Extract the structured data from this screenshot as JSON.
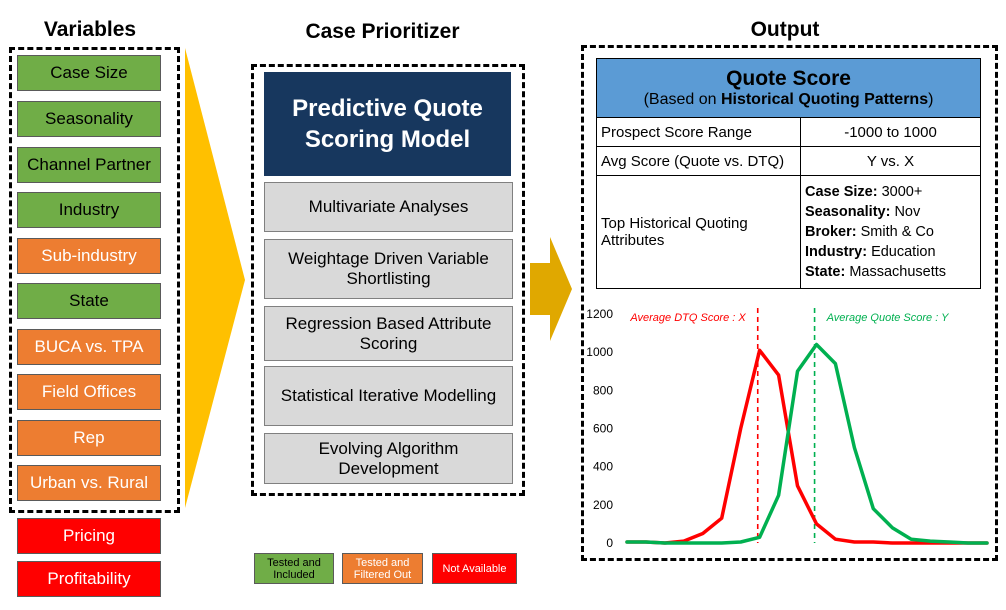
{
  "headings": {
    "variables": "Variables",
    "prioritizer": "Case Prioritizer",
    "output": "Output"
  },
  "variables": [
    {
      "label": "Case Size",
      "status": "green"
    },
    {
      "label": "Seasonality",
      "status": "green"
    },
    {
      "label": "Channel Partner",
      "status": "green"
    },
    {
      "label": "Industry",
      "status": "green"
    },
    {
      "label": "Sub-industry",
      "status": "orange"
    },
    {
      "label": "State",
      "status": "green"
    },
    {
      "label": "BUCA vs. TPA",
      "status": "orange"
    },
    {
      "label": "Field Offices",
      "status": "orange"
    },
    {
      "label": "Rep",
      "status": "orange"
    },
    {
      "label": "Urban vs. Rural",
      "status": "orange"
    }
  ],
  "unavailable": [
    "Pricing",
    "Profitability"
  ],
  "model": {
    "title": "Predictive Quote Scoring Model"
  },
  "steps": [
    "Multivariate Analyses",
    "Weightage Driven Variable Shortlisting",
    "Regression Based Attribute Scoring",
    "Statistical Iterative Modelling",
    "Evolving Algorithm Development"
  ],
  "legend": {
    "tested_included": "Tested and Included",
    "tested_filtered": "Tested and Filtered Out",
    "not_available": "Not Available"
  },
  "colors": {
    "green": "#70ad47",
    "orange": "#ed7d31",
    "red": "#ff0000",
    "navy": "#17375e",
    "blue": "#5b9bd5",
    "arrow": "#ffc000",
    "arrow2": "#e0a800",
    "dtq": "#ff0000",
    "quote": "#00b050"
  },
  "quote_score": {
    "title": "Quote Score",
    "subtitle_prefix": "(Based on ",
    "subtitle_bold": "Historical Quoting Patterns",
    "subtitle_suffix": ")",
    "rows": [
      {
        "label": "Prospect Score Range",
        "value": "-1000 to 1000"
      },
      {
        "label": "Avg Score (Quote vs. DTQ)",
        "value": "Y vs. X"
      }
    ],
    "attr_label": "Top Historical Quoting Attributes",
    "attributes": [
      {
        "key": "Case Size:",
        "value": "3000+"
      },
      {
        "key": "Seasonality:",
        "value": "Nov"
      },
      {
        "key": "Broker:",
        "value": "Smith & Co"
      },
      {
        "key": "Industry:",
        "value": "Education"
      },
      {
        "key": "State:",
        "value": "Massachusetts"
      }
    ]
  },
  "chart_data": {
    "type": "line",
    "x": [
      0,
      1,
      2,
      3,
      4,
      5,
      6,
      7,
      8,
      9,
      10,
      11,
      12,
      13,
      14,
      15,
      16,
      17,
      18,
      19
    ],
    "series": [
      {
        "name": "Average DTQ Score : X",
        "color": "#ff0000",
        "values": [
          5,
          5,
          0,
          10,
          50,
          130,
          600,
          1010,
          880,
          300,
          100,
          20,
          5,
          5,
          0,
          0,
          0,
          0,
          0,
          0
        ]
      },
      {
        "name": "Average Quote Score : Y",
        "color": "#00b050",
        "values": [
          5,
          5,
          0,
          0,
          0,
          0,
          5,
          30,
          250,
          900,
          1040,
          940,
          500,
          180,
          80,
          20,
          10,
          5,
          0,
          0
        ]
      }
    ],
    "ylim": [
      0,
      1200
    ],
    "yticks": [
      0,
      200,
      400,
      600,
      800,
      1000,
      1200
    ],
    "mean_markers": [
      {
        "label": "Average DTQ Score : X",
        "x": 6.9,
        "color": "#ff0000"
      },
      {
        "label": "Average Quote Score : Y",
        "x": 9.9,
        "color": "#00b050"
      }
    ],
    "grid": false
  }
}
